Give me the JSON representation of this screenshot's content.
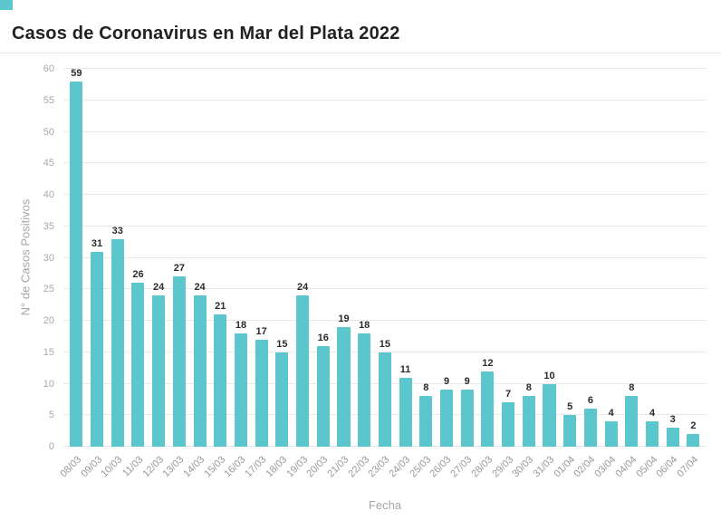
{
  "brand": {
    "accent_color": "#5bc6cc"
  },
  "chart_data": {
    "type": "bar",
    "title": "Casos de Coronavirus en Mar del Plata 2022",
    "xlabel": "Fecha",
    "ylabel": "N° de Casos Positivos",
    "ylim": [
      0,
      60
    ],
    "y_ticks": [
      0,
      5,
      10,
      15,
      20,
      25,
      30,
      35,
      40,
      45,
      50,
      55,
      60
    ],
    "grid": true,
    "legend": "none",
    "bar_color": "#5bc6cc",
    "value_labels_shown": true,
    "categories": [
      "08/03",
      "09/03",
      "10/03",
      "11/03",
      "12/03",
      "13/03",
      "14/03",
      "15/03",
      "16/03",
      "17/03",
      "18/03",
      "19/03",
      "20/03",
      "21/03",
      "22/03",
      "23/03",
      "24/03",
      "25/03",
      "26/03",
      "27/03",
      "28/03",
      "29/03",
      "30/03",
      "31/03",
      "01/04",
      "02/04",
      "03/04",
      "04/04",
      "05/04",
      "06/04",
      "07/04"
    ],
    "values": [
      59,
      31,
      33,
      26,
      24,
      27,
      24,
      21,
      18,
      17,
      15,
      24,
      16,
      19,
      18,
      15,
      11,
      8,
      9,
      9,
      12,
      7,
      8,
      10,
      5,
      6,
      4,
      8,
      4,
      3,
      2
    ]
  }
}
